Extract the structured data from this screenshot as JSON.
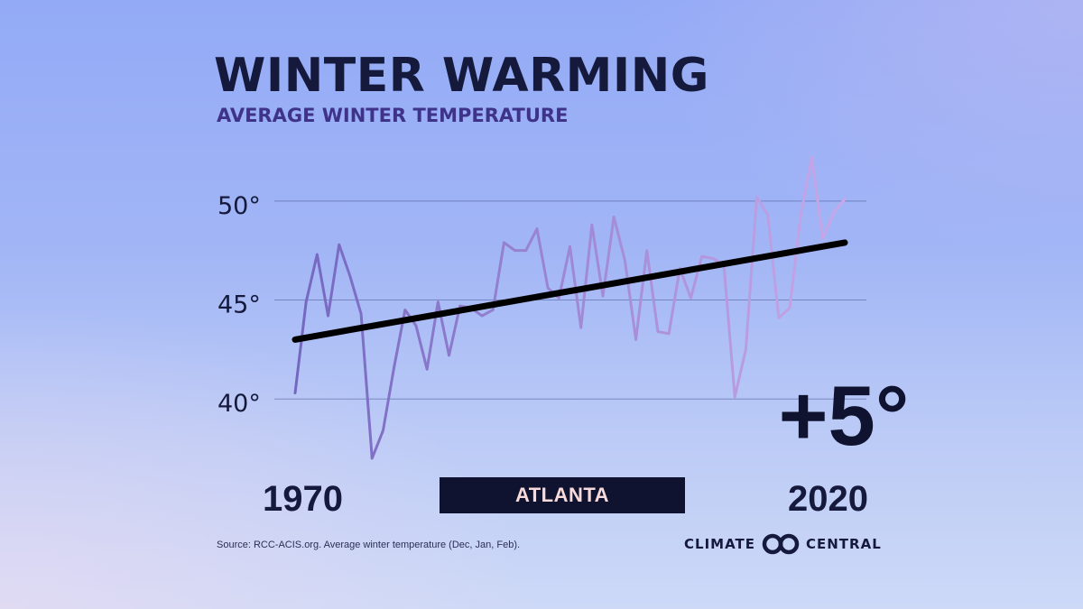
{
  "title": "WINTER WARMING",
  "subtitle": "AVERAGE WINTER TEMPERATURE",
  "city": "ATLANTA",
  "change_label": "+5°",
  "source": "Source: RCC-ACIS.org. Average winter temperature (Dec, Jan, Feb).",
  "brand": {
    "left": "CLIMATE",
    "right": "CENTRAL",
    "logo_icon": "double-ring-logo-icon"
  },
  "colors": {
    "title": "#151a3d",
    "subtitle": "#3e3388",
    "series_start": "#7467c0",
    "series_end": "#c8a8e8",
    "trend": "#000000"
  },
  "chart_data": {
    "type": "line",
    "title": "WINTER WARMING",
    "subtitle": "AVERAGE WINTER TEMPERATURE",
    "xlabel": "",
    "ylabel": "",
    "ylim": [
      37,
      52.5
    ],
    "xlim": [
      1970,
      2020
    ],
    "grid": true,
    "y_ticks": [
      {
        "value": 40,
        "label": "40°"
      },
      {
        "value": 45,
        "label": "45°"
      },
      {
        "value": 50,
        "label": "50°"
      }
    ],
    "x_ticks": [
      {
        "value": 1970,
        "label": "1970"
      },
      {
        "value": 2020,
        "label": "2020"
      }
    ],
    "series": [
      {
        "type": "line",
        "x": [
          1970,
          1971,
          1972,
          1973,
          1974,
          1975,
          1976,
          1977,
          1978,
          1979,
          1980,
          1981,
          1982,
          1983,
          1984,
          1985,
          1986,
          1987,
          1988,
          1989,
          1990,
          1991,
          1992,
          1993,
          1994,
          1995,
          1996,
          1997,
          1998,
          1999,
          2000,
          2001,
          2002,
          2003,
          2004,
          2005,
          2006,
          2007,
          2008,
          2009,
          2010,
          2011,
          2012,
          2013,
          2014,
          2015,
          2016,
          2017,
          2018,
          2019,
          2020
        ],
        "values": [
          40.3,
          44.9,
          47.3,
          44.2,
          47.8,
          46.2,
          44.3,
          37.0,
          38.4,
          41.6,
          44.5,
          43.7,
          41.5,
          44.9,
          42.2,
          44.7,
          44.6,
          44.2,
          44.5,
          47.9,
          47.5,
          47.5,
          48.6,
          45.6,
          45.1,
          47.7,
          43.6,
          48.8,
          45.2,
          49.2,
          47.0,
          43.0,
          47.5,
          43.4,
          43.3,
          46.6,
          45.1,
          47.2,
          47.1,
          46.8,
          40.1,
          42.5,
          50.2,
          49.3,
          44.1,
          44.6,
          49.3,
          52.2,
          48.1,
          49.4,
          50.1
        ]
      },
      {
        "type": "trend",
        "x": [
          1970,
          2020
        ],
        "values": [
          43.0,
          47.9
        ]
      }
    ],
    "annotations": [
      {
        "text": "+5°"
      }
    ]
  }
}
